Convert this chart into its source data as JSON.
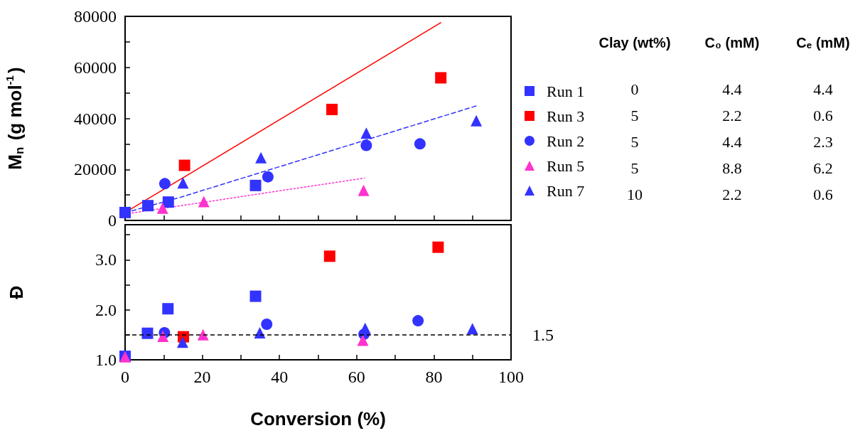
{
  "chart_data": [
    {
      "type": "scatter",
      "ylabel": "M$_{n}$ (g mol$^{-1}$)",
      "xlim": [
        0,
        100
      ],
      "xticks": [
        0,
        10,
        20,
        30,
        40,
        50,
        60,
        70,
        80,
        90,
        100
      ],
      "ylim": [
        0,
        80000
      ],
      "yticks": [
        0,
        {
          "value": 10000,
          "label": null
        },
        20000,
        {
          "value": 30000,
          "label": null
        },
        40000,
        {
          "value": 50000,
          "label": null
        },
        60000,
        {
          "value": 70000,
          "label": null
        },
        80000
      ],
      "tick_labels": "y",
      "legend": "right",
      "grid": false,
      "annotations": [
        "Clay (wt%)",
        "C₀ (mM)",
        "Cₑ (mM)",
        "0",
        "4.4",
        "4.4",
        "5",
        "2.2",
        "0.6",
        "5",
        "4.4",
        "2.3",
        "5",
        "8.8",
        "6.2",
        "10",
        "2.2",
        "0.6"
      ],
      "series": [
        {
          "name": "Run 1",
          "color": "#3333ff",
          "marker": "square",
          "x": [
            0,
            5.9,
            11.2,
            33.8
          ],
          "values": [
            3100,
            5800,
            7200,
            13700
          ]
        },
        {
          "name": "Run 3",
          "color": "#ff0000",
          "marker": "square",
          "x": [
            15.4,
            53.6,
            81.8
          ],
          "values": [
            21600,
            43500,
            55900
          ]
        },
        {
          "name": "Run 2",
          "color": "#3333ff",
          "marker": "circle",
          "x": [
            10.3,
            37.0,
            62.5,
            76.4
          ],
          "values": [
            14400,
            17100,
            29400,
            30000
          ]
        },
        {
          "name": "Run 5",
          "color": "#ff33cc",
          "marker": "triangle",
          "x": [
            9.7,
            20.4,
            61.8
          ],
          "values": [
            4800,
            7400,
            11800
          ]
        },
        {
          "name": "Run 7",
          "color": "#3333ff",
          "marker": "triangle",
          "x": [
            15.0,
            35.2,
            62.5,
            91.0
          ],
          "values": [
            14700,
            24600,
            34200,
            39100
          ]
        },
        {
          "type": "line",
          "color": "#ff0000",
          "line_style": "solid",
          "marker": "none",
          "x": [
            0,
            81.8
          ],
          "values": [
            3100,
            77500
          ]
        },
        {
          "type": "line",
          "color": "#3333ff",
          "line_style": "dashed",
          "marker": "none",
          "x": [
            0,
            14.6,
            91
          ],
          "values": [
            3000,
            9200,
            44900
          ]
        },
        {
          "type": "line",
          "color": "#ff33cc",
          "line_style": "dotted",
          "marker": "none",
          "x": [
            0,
            62
          ],
          "values": [
            2500,
            16600
          ]
        }
      ]
    },
    {
      "type": "scatter",
      "xlabel": "Conversion (%)",
      "ylabel": "Đ",
      "xlim": [
        0,
        100
      ],
      "xticks": [
        0,
        {
          "value": 10,
          "label": null
        },
        20,
        {
          "value": 30,
          "label": null
        },
        40,
        {
          "value": 50,
          "label": null
        },
        60,
        {
          "value": 70,
          "label": null
        },
        80,
        {
          "value": 90,
          "label": null
        },
        100
      ],
      "ylim": [
        1,
        3.7
      ],
      "yticks": [
        {
          "value": 1,
          "label": "1.0"
        },
        {
          "value": 1.5,
          "label": null
        },
        {
          "value": 2,
          "label": "2.0"
        },
        {
          "value": 2.5,
          "label": null
        },
        {
          "value": 3,
          "label": "3.0"
        },
        {
          "value": 3.5,
          "label": null
        }
      ],
      "legend": false,
      "grid": false,
      "ref_lines": [
        {
          "axis": "y",
          "value": 1.5,
          "label": "1.5",
          "color": "#000000",
          "line_style": "dashed"
        }
      ],
      "series": [
        {
          "color": "#3333ff",
          "marker": "square",
          "x": [
            0,
            5.8,
            11.1,
            33.8
          ],
          "values": [
            1.07,
            1.53,
            2.02,
            2.27
          ]
        },
        {
          "color": "#ff0000",
          "marker": "square",
          "x": [
            15.1,
            53.0,
            81.1
          ],
          "values": [
            1.46,
            3.07,
            3.25
          ]
        },
        {
          "color": "#3333ff",
          "marker": "circle",
          "x": [
            10.2,
            36.7,
            61.9,
            75.9
          ],
          "values": [
            1.54,
            1.71,
            1.51,
            1.78
          ]
        },
        {
          "color": "#ff33cc",
          "marker": "triangle",
          "x": [
            0,
            9.8,
            20.2,
            61.6
          ],
          "values": [
            1.06,
            1.47,
            1.5,
            1.39
          ]
        },
        {
          "color": "#3333ff",
          "marker": "triangle",
          "x": [
            14.9,
            34.9,
            62.2,
            90.0
          ],
          "values": [
            1.35,
            1.54,
            1.63,
            1.62
          ]
        }
      ]
    }
  ]
}
